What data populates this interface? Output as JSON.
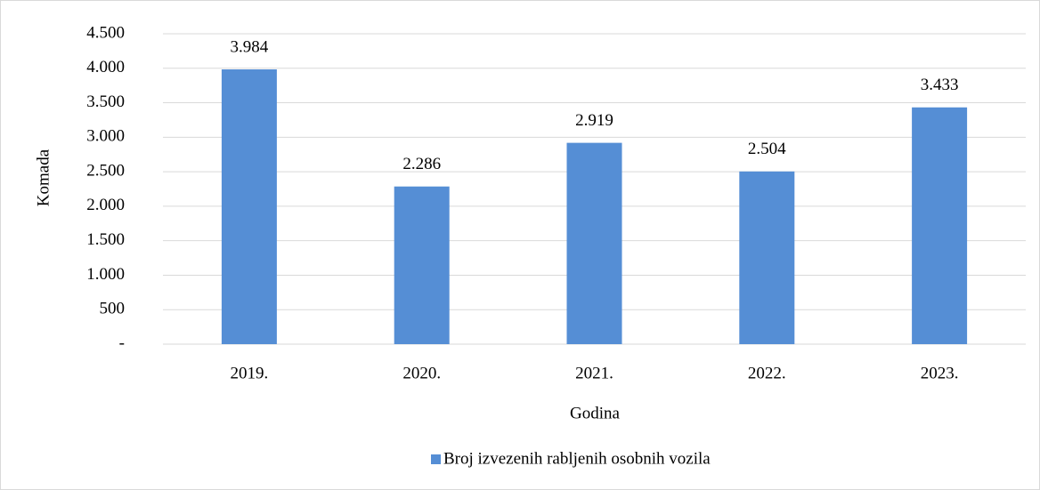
{
  "chart_data": {
    "type": "bar",
    "x_label": "Godina",
    "y_label": "Komada",
    "categories": [
      "2019.",
      "2020.",
      "2021.",
      "2022.",
      "2023."
    ],
    "series": [
      {
        "name": "Broj izvezenih rabljenih osobnih vozila",
        "color": "#558ed5",
        "values": [
          3984,
          2286,
          2919,
          2504,
          3433
        ],
        "value_labels": [
          "3.984",
          "2.286",
          "2.919",
          "2.504",
          "3.433"
        ]
      }
    ],
    "ylim": [
      0,
      4500
    ],
    "yticks": [
      {
        "value": 0,
        "label": "-"
      },
      500,
      {
        "value": 1000,
        "label": "1.000"
      },
      {
        "value": 1500,
        "label": "1.500"
      },
      {
        "value": 2000,
        "label": "2.000"
      },
      {
        "value": 2500,
        "label": "2.500"
      },
      {
        "value": 3000,
        "label": "3.000"
      },
      {
        "value": 3500,
        "label": "3.500"
      },
      {
        "value": 4000,
        "label": "4.000"
      },
      {
        "value": 4500,
        "label": "4.500"
      }
    ],
    "grid": true,
    "legend": "bottom"
  }
}
